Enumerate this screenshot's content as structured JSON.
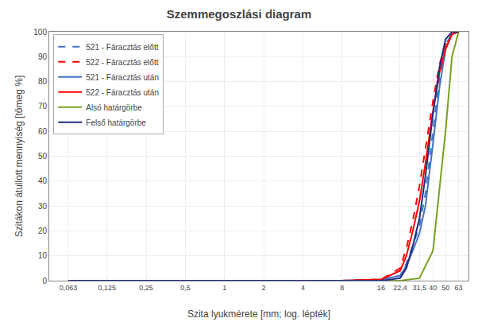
{
  "chart_data": {
    "type": "line",
    "title": "Szemmegoszlási diagram",
    "xlabel": "Szita lyukmérete [mm; log. lépték]",
    "ylabel": "Szitákon átullott mennyiség [tömeg %]",
    "log": "x",
    "grid": true,
    "legend": "upper left",
    "xlim": [
      0.045,
      75
    ],
    "xticks": [
      {
        "value": 0.063,
        "label": "0,063"
      },
      {
        "value": 0.125,
        "label": "0,125"
      },
      {
        "value": 0.25,
        "label": "0,25"
      },
      {
        "value": 0.5,
        "label": "0,5"
      },
      1,
      2,
      4,
      8,
      16,
      {
        "value": 22.4,
        "label": "22,4"
      },
      {
        "value": 31.5,
        "label": "31,5"
      },
      40,
      50,
      63
    ],
    "ylim": [
      0,
      100
    ],
    "yticks": [
      0,
      10,
      20,
      30,
      40,
      50,
      60,
      70,
      80,
      90,
      100
    ],
    "series": [
      {
        "name": "521 - Fárасztás előtt",
        "color": "#4472C4",
        "line_style": "dashed",
        "x": [
          0.063,
          0.125,
          0.25,
          0.5,
          1,
          2,
          4,
          8,
          16,
          22.4,
          25,
          28,
          31.5,
          35,
          40,
          45,
          50,
          56,
          63
        ],
        "values": [
          0,
          0,
          0,
          0,
          0,
          0,
          0,
          0,
          0.5,
          2,
          7,
          14,
          22,
          35,
          60,
          82,
          95,
          99,
          100
        ]
      },
      {
        "name": "522 - Fárасztás előtt",
        "color": "#FF0000",
        "line_style": "dashed",
        "x": [
          0.063,
          0.125,
          0.25,
          0.5,
          1,
          2,
          4,
          8,
          16,
          22.4,
          25,
          28,
          31.5,
          35,
          40,
          45,
          50,
          56,
          63
        ],
        "values": [
          0,
          0,
          0,
          0,
          0,
          0,
          0,
          0,
          0.5,
          5,
          13,
          24,
          38,
          53,
          72,
          87,
          95,
          99,
          100
        ]
      },
      {
        "name": "521 - Fárасztás után",
        "color": "#4472C4",
        "line_style": "solid",
        "x": [
          0.063,
          0.125,
          0.25,
          0.5,
          1,
          2,
          4,
          8,
          16,
          22.4,
          25,
          28,
          31.5,
          35,
          40,
          45,
          50,
          56,
          63
        ],
        "values": [
          0,
          0,
          0,
          0,
          0,
          0,
          0,
          0,
          0.5,
          2,
          6,
          12,
          19,
          30,
          55,
          78,
          93,
          99,
          100
        ]
      },
      {
        "name": "522 - Fárасztás után",
        "color": "#FF0000",
        "line_style": "solid",
        "x": [
          0.063,
          0.125,
          0.25,
          0.5,
          1,
          2,
          4,
          8,
          16,
          22.4,
          25,
          28,
          31.5,
          35,
          40,
          45,
          50,
          56,
          63
        ],
        "values": [
          0,
          0,
          0,
          0,
          0,
          0,
          0,
          0,
          0.5,
          4,
          10,
          20,
          32,
          47,
          68,
          84,
          93,
          99,
          100
        ]
      },
      {
        "name": "Alsó határgörbe",
        "color": "#7aA020",
        "line_style": "solid",
        "x": [
          0.063,
          0.125,
          0.25,
          0.5,
          1,
          2,
          4,
          8,
          16,
          22.4,
          31.5,
          40,
          50,
          56,
          63
        ],
        "values": [
          0,
          0,
          0,
          0,
          0,
          0,
          0,
          0,
          0,
          0,
          1,
          12,
          60,
          90,
          100
        ]
      },
      {
        "name": "Felső határgörbe",
        "color": "#1F2D7B",
        "line_style": "solid",
        "x": [
          0.063,
          0.125,
          0.25,
          0.5,
          1,
          2,
          4,
          8,
          16,
          22.4,
          25,
          28,
          31.5,
          35,
          40,
          45,
          50,
          56,
          63
        ],
        "values": [
          0,
          0,
          0,
          0,
          0,
          0,
          0,
          0,
          0,
          1,
          5,
          14,
          25,
          42,
          67,
          86,
          97,
          100,
          100
        ]
      }
    ]
  }
}
